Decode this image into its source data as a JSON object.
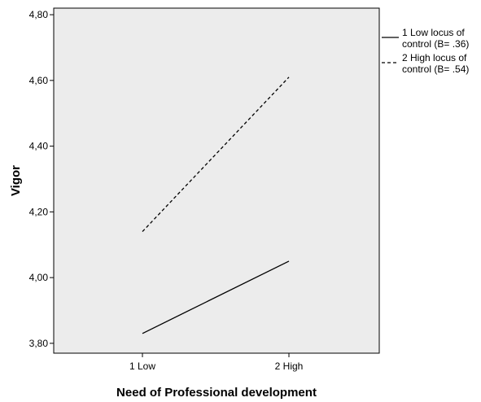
{
  "chart_data": {
    "type": "line",
    "xlabel": "Need of Professional development",
    "ylabel": "Vigor",
    "categories": [
      "1 Low",
      "2 High"
    ],
    "y_tick_labels": [
      "3,80",
      "4,00",
      "4,20",
      "4,40",
      "4,60",
      "4,80"
    ],
    "y_ticks": [
      3.8,
      4.0,
      4.2,
      4.4,
      4.6,
      4.8
    ],
    "ylim": [
      3.77,
      4.82
    ],
    "grid": false,
    "legend_position": "top-right outside",
    "series": [
      {
        "name": "1 Low locus of control (B= .36)",
        "legend_lines": [
          "1 Low locus of",
          "control (B= .36)"
        ],
        "style": "solid",
        "values": [
          3.83,
          4.05
        ]
      },
      {
        "name": "2 High locus of control (B= .54)",
        "legend_lines": [
          "2 High locus of",
          "control (B= .54)"
        ],
        "style": "dashed",
        "values": [
          4.14,
          4.61
        ]
      }
    ],
    "colors": {
      "plot_background": "#ececec",
      "line": "#000000",
      "axis": "#000000"
    }
  }
}
